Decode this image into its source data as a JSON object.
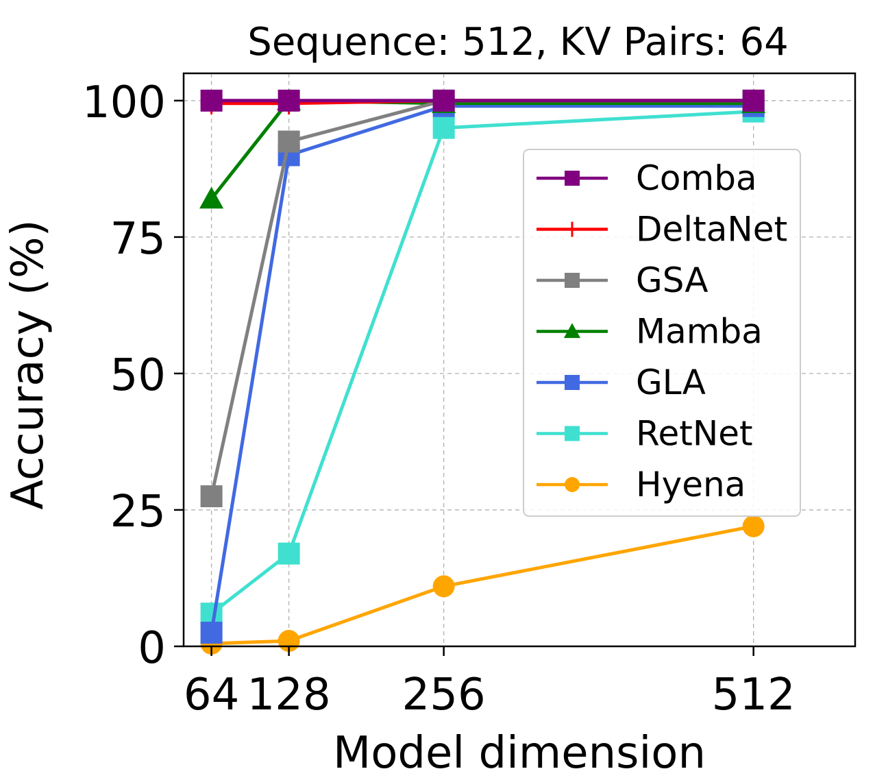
{
  "chart_data": {
    "type": "line",
    "title": "Sequence: 512, KV Pairs: 64",
    "xlabel": "Model dimension",
    "ylabel": "Accuracy (%)",
    "x": [
      64,
      128,
      256,
      512
    ],
    "x_tick_labels": [
      "64",
      "128",
      "256",
      "512"
    ],
    "y_ticks": [
      0,
      25,
      50,
      75,
      100
    ],
    "y_tick_labels": [
      "0",
      "25",
      "50",
      "75",
      "100"
    ],
    "xlim": [
      41,
      596
    ],
    "ylim": [
      0,
      105
    ],
    "grid": true,
    "legend_position": "center-right",
    "series": [
      {
        "name": "Comba",
        "color": "#800080",
        "marker": "square",
        "values": [
          100,
          100,
          100,
          100
        ]
      },
      {
        "name": "DeltaNet",
        "color": "#ff0000",
        "marker": "plus",
        "values": [
          99.5,
          99.5,
          100,
          100
        ]
      },
      {
        "name": "GSA",
        "color": "#808080",
        "marker": "square",
        "values": [
          27.5,
          92.5,
          100,
          100
        ]
      },
      {
        "name": "Mamba",
        "color": "#008000",
        "marker": "triangle",
        "values": [
          82,
          100,
          99.5,
          99.5
        ]
      },
      {
        "name": "GLA",
        "color": "#4169e1",
        "marker": "square",
        "values": [
          2.5,
          90,
          99,
          99
        ]
      },
      {
        "name": "RetNet",
        "color": "#40e0d0",
        "marker": "square",
        "values": [
          6,
          17,
          95,
          98
        ]
      },
      {
        "name": "Hyena",
        "color": "#ffa500",
        "marker": "circle",
        "values": [
          0.5,
          1,
          11,
          22
        ]
      }
    ]
  }
}
